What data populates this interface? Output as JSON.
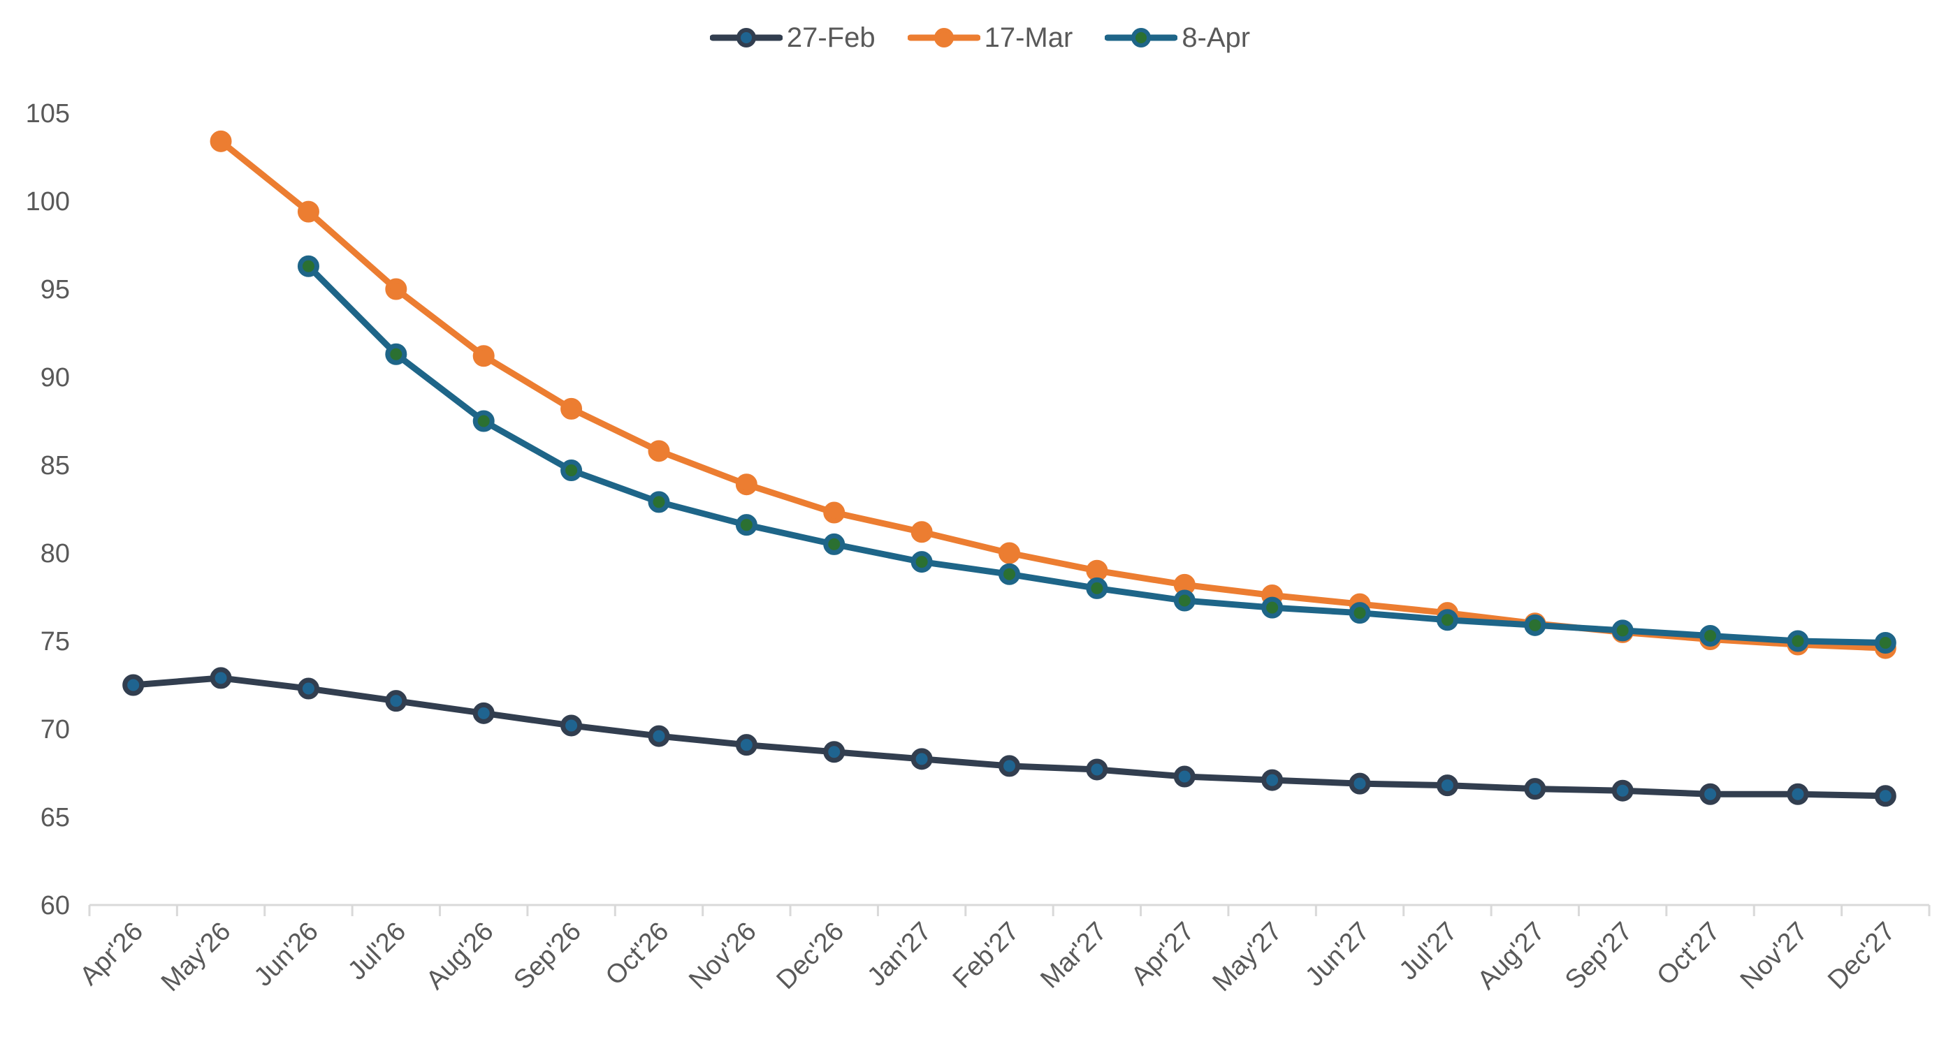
{
  "legend": {
    "position": "top-center"
  },
  "chart_data": {
    "type": "line",
    "title": "",
    "xlabel": "",
    "ylabel": "",
    "categories": [
      "Apr'26",
      "May'26",
      "Jun'26",
      "Jul'26",
      "Aug'26",
      "Sep'26",
      "Oct'26",
      "Nov'26",
      "Dec'26",
      "Jan'27",
      "Feb'27",
      "Mar'27",
      "Apr'27",
      "May'27",
      "Jun'27",
      "Jul'27",
      "Aug'27",
      "Sep'27",
      "Oct'27",
      "Nov'27",
      "Dec'27"
    ],
    "series": [
      {
        "name": "27-Feb",
        "line_color": "#323E4F",
        "marker_fill": "#1F6490",
        "marker_ring": "#323E4F",
        "values": [
          72.5,
          72.9,
          72.3,
          71.6,
          70.9,
          70.2,
          69.6,
          69.1,
          68.7,
          68.3,
          67.9,
          67.7,
          67.3,
          67.1,
          66.9,
          66.8,
          66.6,
          66.5,
          66.3,
          66.3,
          66.2
        ]
      },
      {
        "name": "17-Mar",
        "line_color": "#EC7D31",
        "marker_fill": "#EC7D31",
        "marker_ring": "#EC7D31",
        "values": [
          null,
          103.4,
          99.4,
          95.0,
          91.2,
          88.2,
          85.8,
          83.9,
          82.3,
          81.2,
          80.0,
          79.0,
          78.2,
          77.6,
          77.1,
          76.6,
          76.0,
          75.5,
          75.1,
          74.8,
          74.6
        ]
      },
      {
        "name": "8-Apr",
        "line_color": "#1E6588",
        "marker_fill": "#2B7031",
        "marker_ring": "#1E6588",
        "values": [
          null,
          null,
          96.3,
          91.3,
          87.5,
          84.7,
          82.9,
          81.6,
          80.5,
          79.5,
          78.8,
          78.0,
          77.3,
          76.9,
          76.6,
          76.2,
          75.9,
          75.6,
          75.3,
          75.0,
          74.9
        ]
      }
    ],
    "draw_order": [
      1,
      2,
      0
    ],
    "ylim": [
      60,
      105
    ],
    "y_step": 5,
    "y_tick_labels": [
      "60",
      "65",
      "70",
      "75",
      "80",
      "85",
      "90",
      "95",
      "100",
      "105"
    ],
    "grid": false,
    "legend_position": "top-center",
    "axis_line_color": "#D9D9D9",
    "tick_label_color": "#595959",
    "background_color": "#FFFFFF"
  }
}
